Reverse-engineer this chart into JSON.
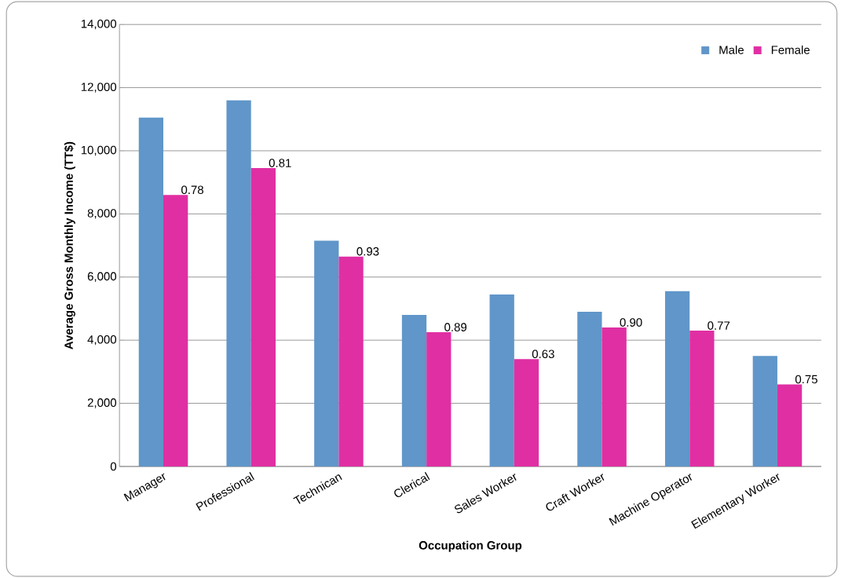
{
  "chart_data": {
    "type": "bar",
    "xlabel": "Occupation Group",
    "ylabel": "Average Gross Monthly Income (TT$)",
    "categories": [
      "Manager",
      "Professional",
      "Technican",
      "Clerical",
      "Sales Worker",
      "Craft Worker",
      "Machine Operator",
      "Elementary Worker"
    ],
    "series": [
      {
        "name": "Male",
        "color": "#6096c9",
        "values": [
          11050,
          11600,
          7150,
          4800,
          5450,
          4900,
          5550,
          3500
        ]
      },
      {
        "name": "Female",
        "color": "#e02fa3",
        "values": [
          8600,
          9450,
          6650,
          4250,
          3400,
          4400,
          4300,
          2600
        ]
      }
    ],
    "annotations": [
      {
        "text": "0.78",
        "x": "Manager",
        "y": 8600
      },
      {
        "text": "0.81",
        "x": "Professional",
        "y": 9450
      },
      {
        "text": "0.93",
        "x": "Technican",
        "y": 6650
      },
      {
        "text": "0.89",
        "x": "Clerical",
        "y": 4250
      },
      {
        "text": "0.63",
        "x": "Sales Worker",
        "y": 3400
      },
      {
        "text": "0.90",
        "x": "Craft Worker",
        "y": 4400
      },
      {
        "text": "0.77",
        "x": "Machine Operator",
        "y": 4300
      },
      {
        "text": "0.75",
        "x": "Elementary Worker",
        "y": 2600
      }
    ],
    "ylim": [
      0,
      14000
    ],
    "yticks": [
      {
        "value": 0,
        "label": "0"
      },
      {
        "value": 2000,
        "label": "2,000"
      },
      {
        "value": 4000,
        "label": "4,000"
      },
      {
        "value": 6000,
        "label": "6,000"
      },
      {
        "value": 8000,
        "label": "8,000"
      },
      {
        "value": 10000,
        "label": "10,000"
      },
      {
        "value": 12000,
        "label": "12,000"
      },
      {
        "value": 14000,
        "label": "14,000"
      }
    ],
    "grid": "y",
    "legend": "top right"
  }
}
